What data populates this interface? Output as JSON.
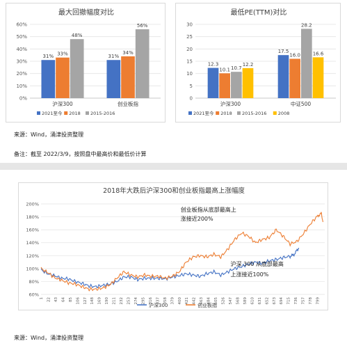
{
  "chart_data": [
    {
      "type": "bar",
      "title": "最大回撤幅度对比",
      "categories": [
        "沪深300",
        "创业板指"
      ],
      "series": [
        {
          "name": "2021至今",
          "values": [
            31,
            31
          ],
          "labels": [
            "31%",
            "31%"
          ],
          "color": "#4472c4"
        },
        {
          "name": "2018",
          "values": [
            33,
            34
          ],
          "labels": [
            "33%",
            "34%"
          ],
          "color": "#ed7d31"
        },
        {
          "name": "2015-2016",
          "values": [
            48,
            56
          ],
          "labels": [
            "48%",
            "56%"
          ],
          "color": "#a5a5a5"
        }
      ],
      "ylim": [
        0,
        60
      ],
      "yticks": [
        "0%",
        "10%",
        "20%",
        "30%",
        "40%",
        "50%",
        "60%"
      ],
      "grid": true,
      "legend": "bottom"
    },
    {
      "type": "bar",
      "title": "最低PE(TTM)对比",
      "categories": [
        "沪深300",
        "中证500"
      ],
      "series": [
        {
          "name": "2021至今",
          "values": [
            12.3,
            17.5
          ],
          "labels": [
            "12.3",
            "17.5"
          ],
          "color": "#4472c4"
        },
        {
          "name": "2018",
          "values": [
            10.1,
            16.0
          ],
          "labels": [
            "10.1",
            "16.0"
          ],
          "color": "#ed7d31"
        },
        {
          "name": "2015-2016",
          "values": [
            10.7,
            28.2
          ],
          "labels": [
            "10.7",
            "28.2"
          ],
          "color": "#a5a5a5"
        },
        {
          "name": "2008",
          "values": [
            12.2,
            16.6
          ],
          "labels": [
            "12.2",
            "16.6"
          ],
          "color": "#ffc000"
        }
      ],
      "ylim": [
        0,
        30
      ],
      "yticks": [
        "0",
        "5",
        "10",
        "15",
        "20",
        "25",
        "30"
      ],
      "grid": true,
      "legend": "bottom"
    },
    {
      "type": "line",
      "title": "2018年大跌后沪深300和创业板指最高上涨幅度",
      "xticks": [
        "1",
        "22",
        "43",
        "64",
        "85",
        "106",
        "127",
        "148",
        "169",
        "190",
        "211",
        "232",
        "253",
        "274",
        "295",
        "316",
        "337",
        "358",
        "379",
        "400",
        "421",
        "442",
        "463",
        "484",
        "505",
        "526",
        "547",
        "568",
        "589",
        "610",
        "631",
        "652",
        "673",
        "694",
        "715",
        "736",
        "757",
        "778",
        "799"
      ],
      "yticks": [
        "60%",
        "80%",
        "100%",
        "120%",
        "140%",
        "160%",
        "180%",
        "200%"
      ],
      "ylim": [
        60,
        200
      ],
      "xlim": [
        1,
        820
      ],
      "grid": true,
      "legend": "bottom",
      "series": [
        {
          "name": "沪深300",
          "color": "#4472c4",
          "points": [
            [
              1,
              98
            ],
            [
              20,
              92
            ],
            [
              40,
              89
            ],
            [
              60,
              85
            ],
            [
              80,
              84
            ],
            [
              100,
              80
            ],
            [
              120,
              77
            ],
            [
              140,
              73
            ],
            [
              160,
              72
            ],
            [
              180,
              74
            ],
            [
              200,
              76
            ],
            [
              220,
              80
            ],
            [
              240,
              87
            ],
            [
              260,
              87
            ],
            [
              280,
              83
            ],
            [
              300,
              85
            ],
            [
              320,
              85
            ],
            [
              340,
              85
            ],
            [
              360,
              84
            ],
            [
              380,
              87
            ],
            [
              400,
              89
            ],
            [
              420,
              92
            ],
            [
              440,
              90
            ],
            [
              460,
              88
            ],
            [
              480,
              92
            ],
            [
              500,
              95
            ],
            [
              520,
              90
            ],
            [
              540,
              95
            ],
            [
              560,
              100
            ],
            [
              580,
              103
            ],
            [
              600,
              107
            ],
            [
              620,
              110
            ],
            [
              640,
              108
            ],
            [
              660,
              112
            ],
            [
              680,
              114
            ],
            [
              700,
              117
            ],
            [
              720,
              119
            ],
            [
              730,
              121
            ],
            [
              740,
              128
            ],
            [
              745,
              132
            ]
          ]
        },
        {
          "name": "创业板指",
          "color": "#ed7d31",
          "points": [
            [
              1,
              100
            ],
            [
              20,
              94
            ],
            [
              40,
              86
            ],
            [
              60,
              82
            ],
            [
              80,
              78
            ],
            [
              100,
              76
            ],
            [
              120,
              72
            ],
            [
              140,
              68
            ],
            [
              160,
              68
            ],
            [
              180,
              70
            ],
            [
              200,
              75
            ],
            [
              220,
              85
            ],
            [
              240,
              95
            ],
            [
              260,
              90
            ],
            [
              280,
              87
            ],
            [
              300,
              90
            ],
            [
              320,
              88
            ],
            [
              340,
              88
            ],
            [
              360,
              85
            ],
            [
              380,
              88
            ],
            [
              400,
              95
            ],
            [
              420,
              110
            ],
            [
              440,
              118
            ],
            [
              460,
              120
            ],
            [
              480,
              118
            ],
            [
              500,
              122
            ],
            [
              520,
              118
            ],
            [
              540,
              130
            ],
            [
              560,
              145
            ],
            [
              580,
              155
            ],
            [
              600,
              150
            ],
            [
              620,
              140
            ],
            [
              640,
              145
            ],
            [
              660,
              148
            ],
            [
              680,
              160
            ],
            [
              700,
              150
            ],
            [
              720,
              138
            ],
            [
              740,
              142
            ],
            [
              760,
              155
            ],
            [
              780,
              170
            ],
            [
              800,
              182
            ],
            [
              810,
              185
            ],
            [
              815,
              172
            ]
          ]
        }
      ],
      "annotations": [
        {
          "text": "创业板指从底部最高上",
          "x": 404,
          "y": 188
        },
        {
          "text": "涨接近200%",
          "x": 404,
          "y": 174
        },
        {
          "text": "沪深 300 从底部最高",
          "x": 548,
          "y": 104
        },
        {
          "text": "上涨接近100%",
          "x": 548,
          "y": 88
        }
      ]
    }
  ],
  "notes": {
    "source_top": "来源：Wind，涌津投资整理",
    "remark": "备注：截至 2022/3/9，按照盘中最高价和最低价计算",
    "source_bottom": "来源：Wind，涌津投资整理"
  }
}
